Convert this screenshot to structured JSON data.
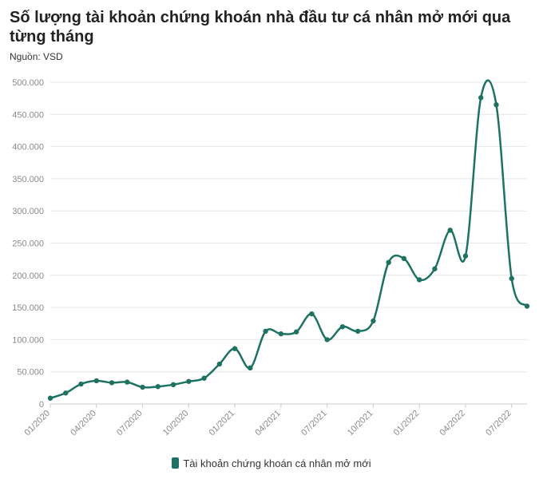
{
  "header": {
    "title": "Số lượng tài khoản chứng khoán nhà đầu tư cá nhân mở mới qua từng tháng",
    "source": "Nguồn: VSD"
  },
  "colors": {
    "series": "#1e7262",
    "grid": "#e6e6e6",
    "axis": "#cccccc"
  },
  "chart_data": {
    "type": "line",
    "title": "Số lượng tài khoản chứng khoán nhà đầu tư cá nhân mở mới qua từng tháng",
    "xlabel": "",
    "ylabel": "",
    "ylim": [
      0,
      500000
    ],
    "yticks": [
      0,
      50000,
      100000,
      150000,
      200000,
      250000,
      300000,
      350000,
      400000,
      450000,
      500000
    ],
    "ytick_labels": [
      "0",
      "50.000",
      "100.000",
      "150.000",
      "200.000",
      "250.000",
      "300.000",
      "350.000",
      "400.000",
      "450.000",
      "500.000"
    ],
    "x": [
      "01/2020",
      "02/2020",
      "03/2020",
      "04/2020",
      "05/2020",
      "06/2020",
      "07/2020",
      "08/2020",
      "09/2020",
      "10/2020",
      "11/2020",
      "12/2020",
      "01/2021",
      "02/2021",
      "03/2021",
      "04/2021",
      "05/2021",
      "06/2021",
      "07/2021",
      "08/2021",
      "09/2021",
      "10/2021",
      "11/2021",
      "12/2021",
      "01/2022",
      "02/2022",
      "03/2022",
      "04/2022",
      "05/2022",
      "06/2022",
      "07/2022",
      "08/2022"
    ],
    "xtick_labels": [
      "01/2020",
      "04/2020",
      "07/2020",
      "10/2020",
      "01/2021",
      "04/2021",
      "07/2021",
      "10/2021",
      "01/2022",
      "04/2022",
      "07/2022"
    ],
    "grid": true,
    "legend": "bottom-center",
    "series": [
      {
        "name": "Tài khoản chứng khoán cá nhân mở mới",
        "values": [
          9000,
          17000,
          31000,
          36000,
          33000,
          34000,
          26000,
          27000,
          30000,
          35000,
          40000,
          62000,
          86000,
          56000,
          113000,
          109000,
          112000,
          140000,
          100000,
          120000,
          113000,
          129000,
          220000,
          226000,
          193000,
          210000,
          270000,
          230000,
          476000,
          465000,
          195000,
          152000
        ]
      }
    ]
  }
}
